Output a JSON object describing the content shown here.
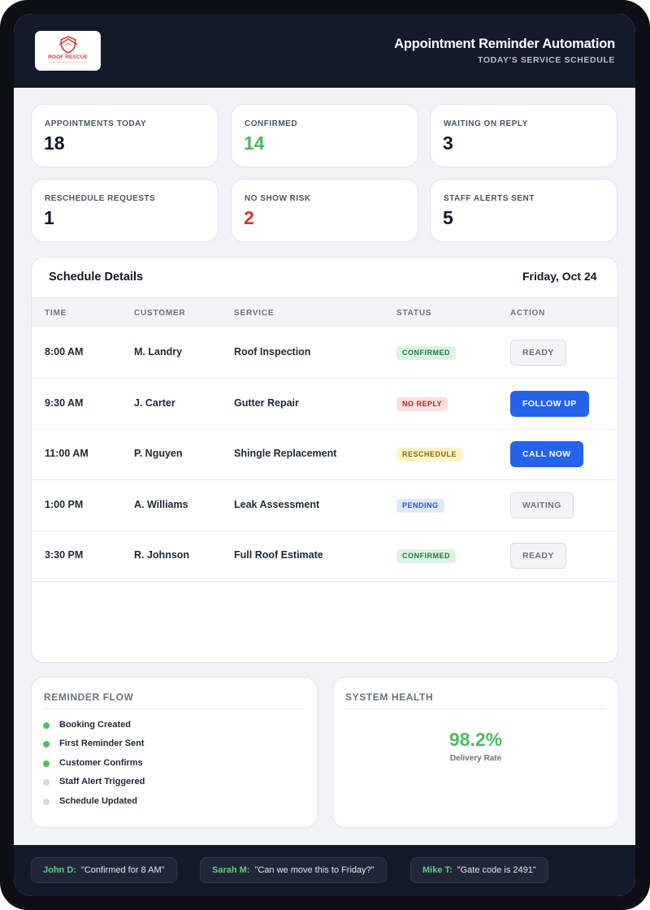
{
  "header": {
    "logo_text": "ROOF RESCUE",
    "title": "Appointment Reminder Automation",
    "subtitle": "TODAY'S SERVICE SCHEDULE"
  },
  "stats": [
    {
      "label": "APPOINTMENTS TODAY",
      "value": "18"
    },
    {
      "label": "CONFIRMED",
      "value": "14",
      "color": "#4cbb5e"
    },
    {
      "label": "WAITING ON REPLY",
      "value": "3"
    },
    {
      "label": "RESCHEDULE REQUESTS",
      "value": "1"
    },
    {
      "label": "NO SHOW RISK",
      "value": "2",
      "color": "#d63131"
    },
    {
      "label": "STAFF ALERTS SENT",
      "value": "5"
    }
  ],
  "schedule": {
    "title": "Schedule Details",
    "date": "Friday, Oct 24",
    "columns": [
      "TIME",
      "CUSTOMER",
      "SERVICE",
      "STATUS",
      "ACTION"
    ],
    "rows": [
      {
        "time": "8:00 AM",
        "customer": "M. Landry",
        "service": "Roof Inspection",
        "status": "CONFIRMED",
        "action": "READY"
      },
      {
        "time": "9:30 AM",
        "customer": "J. Carter",
        "service": "Gutter Repair",
        "status": "NO REPLY",
        "action": "FOLLOW UP"
      },
      {
        "time": "11:00 AM",
        "customer": "P. Nguyen",
        "service": "Shingle Replacement",
        "status": "RESCHEDULE",
        "action": "CALL NOW"
      },
      {
        "time": "1:00 PM",
        "customer": "A. Williams",
        "service": "Leak Assessment",
        "status": "PENDING",
        "action": "WAITING"
      },
      {
        "time": "3:30 PM",
        "customer": "R. Johnson",
        "service": "Full Roof Estimate",
        "status": "CONFIRMED",
        "action": "READY"
      }
    ]
  },
  "reminder_flow": {
    "title": "REMINDER FLOW",
    "steps": [
      {
        "label": "Booking Created",
        "done": true
      },
      {
        "label": "First Reminder Sent",
        "done": true
      },
      {
        "label": "Customer Confirms",
        "done": true
      },
      {
        "label": "Staff Alert Triggered",
        "done": false
      },
      {
        "label": "Schedule Updated",
        "done": false
      }
    ]
  },
  "system_health": {
    "title": "SYSTEM HEALTH",
    "value": "98.2%",
    "label": "Delivery Rate"
  },
  "messages": [
    {
      "name": "John D:",
      "text": "\"Confirmed for 8 AM\""
    },
    {
      "name": "Sarah M:",
      "text": "\"Can we move this to Friday?\""
    },
    {
      "name": "Mike T:",
      "text": "\"Gate code is 2491\""
    }
  ]
}
